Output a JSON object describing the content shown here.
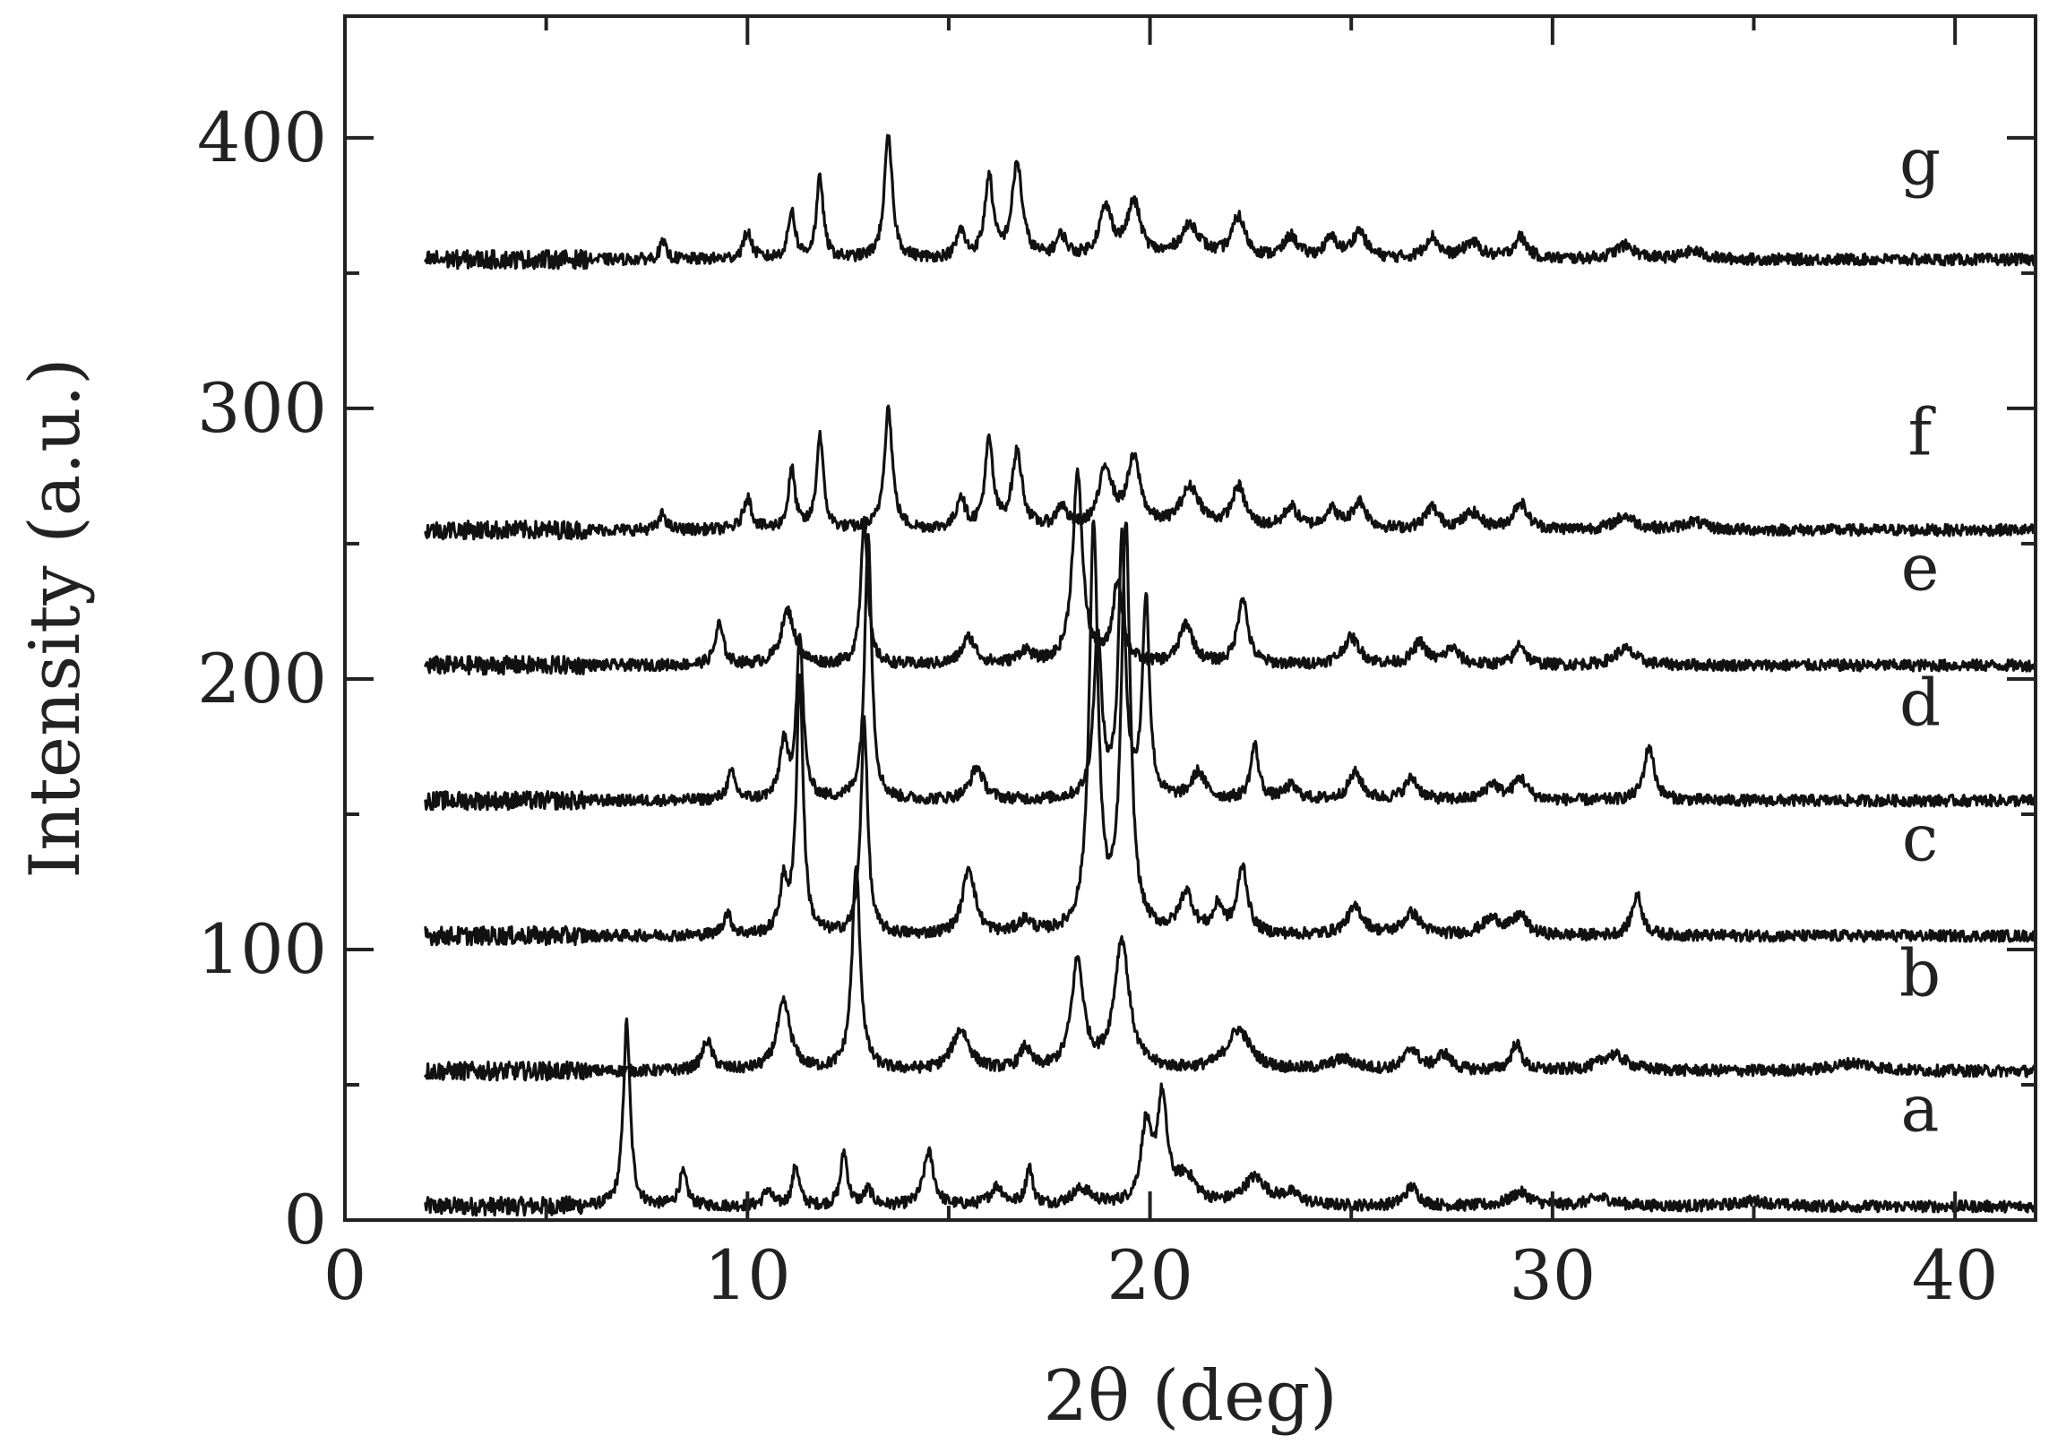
{
  "chart_data": {
    "type": "line",
    "title": "",
    "xlabel": "2θ (deg)",
    "ylabel": "Intensity (a.u.)",
    "xlim": [
      0,
      42
    ],
    "ylim": [
      0,
      445
    ],
    "x_major_ticks": [
      0,
      10,
      20,
      30,
      40
    ],
    "x_tick_labels": [
      "0",
      "10",
      "20",
      "30",
      "40"
    ],
    "x_minor_ticks": [
      5,
      15,
      25,
      35
    ],
    "y_major_ticks": [
      0,
      100,
      200,
      300,
      400
    ],
    "y_tick_labels": [
      "0",
      "100",
      "200",
      "300",
      "400"
    ],
    "y_minor_ticks": [
      50,
      150,
      250,
      350
    ],
    "grid": false,
    "legend": "none",
    "x_range": [
      2,
      42
    ],
    "series": [
      {
        "name": "a",
        "baseline": 5,
        "peaks": [
          [
            7.0,
            68,
            0.1
          ],
          [
            8.4,
            12,
            0.12
          ],
          [
            10.5,
            6,
            0.12
          ],
          [
            11.2,
            15,
            0.1
          ],
          [
            12.4,
            20,
            0.1
          ],
          [
            13.0,
            6,
            0.12
          ],
          [
            14.5,
            20,
            0.15
          ],
          [
            16.2,
            7,
            0.2
          ],
          [
            17.0,
            14,
            0.1
          ],
          [
            18.3,
            6,
            0.3
          ],
          [
            19.9,
            28,
            0.15
          ],
          [
            20.3,
            38,
            0.15
          ],
          [
            20.9,
            10,
            0.3
          ],
          [
            22.6,
            10,
            0.35
          ],
          [
            23.5,
            4,
            0.3
          ],
          [
            26.5,
            7,
            0.2
          ],
          [
            29.2,
            5,
            0.3
          ],
          [
            31.2,
            3,
            0.4
          ],
          [
            35.0,
            2,
            0.5
          ]
        ]
      },
      {
        "name": "b",
        "baseline": 55,
        "peaks": [
          [
            9.0,
            11,
            0.15
          ],
          [
            10.9,
            25,
            0.2
          ],
          [
            12.7,
            75,
            0.12
          ],
          [
            15.3,
            15,
            0.25
          ],
          [
            16.9,
            8,
            0.15
          ],
          [
            18.2,
            40,
            0.18
          ],
          [
            19.3,
            48,
            0.22
          ],
          [
            22.2,
            15,
            0.35
          ],
          [
            24.8,
            4,
            0.4
          ],
          [
            26.5,
            8,
            0.2
          ],
          [
            27.3,
            6,
            0.2
          ],
          [
            29.1,
            10,
            0.15
          ],
          [
            31.5,
            6,
            0.4
          ],
          [
            37.5,
            3,
            0.6
          ]
        ]
      },
      {
        "name": "c",
        "baseline": 105,
        "peaks": [
          [
            9.5,
            8,
            0.12
          ],
          [
            10.9,
            18,
            0.12
          ],
          [
            11.3,
            95,
            0.1
          ],
          [
            12.9,
            80,
            0.1
          ],
          [
            15.5,
            25,
            0.18
          ],
          [
            16.9,
            5,
            0.2
          ],
          [
            18.6,
            150,
            0.13
          ],
          [
            19.4,
            150,
            0.13
          ],
          [
            20.9,
            15,
            0.2
          ],
          [
            21.7,
            10,
            0.15
          ],
          [
            22.3,
            25,
            0.15
          ],
          [
            25.1,
            10,
            0.25
          ],
          [
            26.5,
            8,
            0.25
          ],
          [
            28.5,
            6,
            0.3
          ],
          [
            29.2,
            7,
            0.2
          ],
          [
            32.1,
            15,
            0.15
          ]
        ]
      },
      {
        "name": "d",
        "baseline": 155,
        "peaks": [
          [
            9.6,
            10,
            0.12
          ],
          [
            10.9,
            20,
            0.12
          ],
          [
            11.3,
            60,
            0.1
          ],
          [
            13.0,
            100,
            0.1
          ],
          [
            15.7,
            12,
            0.2
          ],
          [
            18.7,
            60,
            0.12
          ],
          [
            19.3,
            95,
            0.1
          ],
          [
            19.9,
            75,
            0.1
          ],
          [
            21.2,
            10,
            0.2
          ],
          [
            22.6,
            20,
            0.12
          ],
          [
            23.5,
            5,
            0.2
          ],
          [
            25.1,
            10,
            0.2
          ],
          [
            26.5,
            8,
            0.2
          ],
          [
            28.5,
            6,
            0.2
          ],
          [
            29.2,
            8,
            0.2
          ],
          [
            32.4,
            20,
            0.15
          ]
        ]
      },
      {
        "name": "e",
        "baseline": 205,
        "peaks": [
          [
            9.3,
            15,
            0.12
          ],
          [
            11.0,
            20,
            0.2
          ],
          [
            12.9,
            55,
            0.1
          ],
          [
            15.5,
            10,
            0.2
          ],
          [
            16.9,
            5,
            0.2
          ],
          [
            18.2,
            70,
            0.15
          ],
          [
            19.2,
            30,
            0.15
          ],
          [
            20.9,
            15,
            0.2
          ],
          [
            22.3,
            25,
            0.15
          ],
          [
            25.0,
            10,
            0.25
          ],
          [
            26.7,
            8,
            0.2
          ],
          [
            27.5,
            6,
            0.2
          ],
          [
            29.2,
            8,
            0.15
          ],
          [
            31.8,
            6,
            0.3
          ]
        ]
      },
      {
        "name": "f",
        "baseline": 255,
        "peaks": [
          [
            7.9,
            6,
            0.1
          ],
          [
            10.0,
            12,
            0.12
          ],
          [
            11.1,
            22,
            0.1
          ],
          [
            11.8,
            35,
            0.1
          ],
          [
            13.5,
            45,
            0.12
          ],
          [
            15.3,
            12,
            0.12
          ],
          [
            16.0,
            32,
            0.12
          ],
          [
            16.7,
            28,
            0.15
          ],
          [
            17.8,
            8,
            0.15
          ],
          [
            18.9,
            22,
            0.2
          ],
          [
            19.6,
            25,
            0.2
          ],
          [
            21.0,
            15,
            0.3
          ],
          [
            22.2,
            15,
            0.2
          ],
          [
            23.5,
            8,
            0.2
          ],
          [
            24.5,
            7,
            0.2
          ],
          [
            25.2,
            10,
            0.2
          ],
          [
            27.0,
            8,
            0.2
          ],
          [
            28.0,
            6,
            0.25
          ],
          [
            29.2,
            10,
            0.2
          ],
          [
            31.8,
            5,
            0.3
          ],
          [
            33.5,
            3,
            0.3
          ]
        ]
      },
      {
        "name": "g",
        "baseline": 355,
        "peaks": [
          [
            7.9,
            6,
            0.1
          ],
          [
            10.0,
            10,
            0.12
          ],
          [
            11.1,
            18,
            0.1
          ],
          [
            11.8,
            30,
            0.1
          ],
          [
            13.5,
            45,
            0.12
          ],
          [
            15.3,
            10,
            0.12
          ],
          [
            16.0,
            30,
            0.12
          ],
          [
            16.7,
            35,
            0.15
          ],
          [
            17.8,
            8,
            0.15
          ],
          [
            18.9,
            18,
            0.2
          ],
          [
            19.6,
            20,
            0.2
          ],
          [
            21.0,
            12,
            0.3
          ],
          [
            22.2,
            15,
            0.2
          ],
          [
            23.5,
            8,
            0.2
          ],
          [
            24.5,
            7,
            0.2
          ],
          [
            25.2,
            10,
            0.2
          ],
          [
            27.0,
            8,
            0.2
          ],
          [
            28.0,
            6,
            0.25
          ],
          [
            29.2,
            8,
            0.2
          ],
          [
            31.8,
            5,
            0.3
          ],
          [
            33.5,
            3,
            0.3
          ]
        ]
      }
    ]
  }
}
